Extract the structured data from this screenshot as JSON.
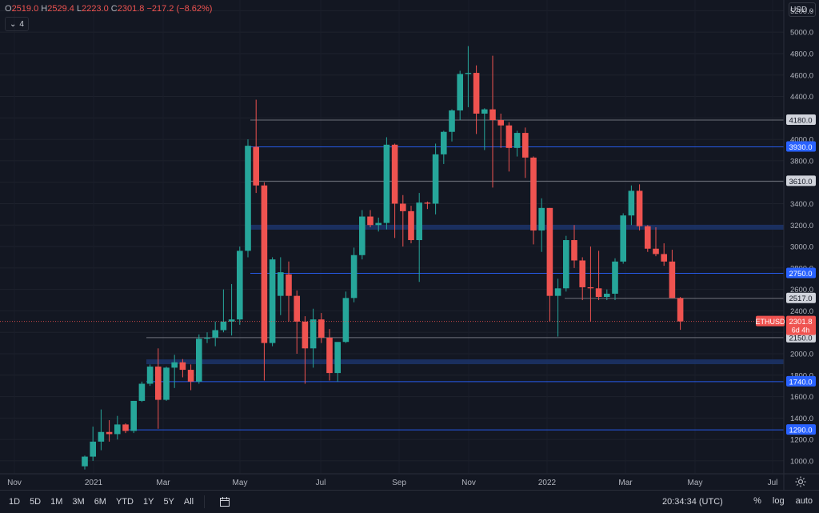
{
  "ohlc": {
    "o_label": "O",
    "o": "2519.0",
    "h_label": "H",
    "h": "2529.4",
    "l_label": "L",
    "l": "2223.0",
    "c_label": "C",
    "c": "2301.8",
    "change": "−217.2 (−8.62%)"
  },
  "indicator_count": "4",
  "currency": "USD",
  "colors": {
    "up": "#26a69a",
    "down": "#ef5350",
    "bg": "#131722",
    "grid": "#2a2e39",
    "blue_line": "#2962ff",
    "zone": "#1c3266"
  },
  "chart_data": {
    "type": "candlestick",
    "symbol": "ETHUSD",
    "last_price": "2301.8",
    "countdown": "6d 4h",
    "ylim": [
      880,
      5300
    ],
    "y_ticks": [
      "1000.0",
      "1200.0",
      "1400.0",
      "1600.0",
      "1800.0",
      "2000.0",
      "2200.0",
      "2400.0",
      "2600.0",
      "2800.0",
      "3000.0",
      "3200.0",
      "3400.0",
      "3600.0",
      "3800.0",
      "4000.0",
      "4200.0",
      "4400.0",
      "4600.0",
      "4800.0",
      "5000.0",
      "5200.0"
    ],
    "x_ticks": [
      "Nov",
      "2021",
      "Mar",
      "May",
      "Jul",
      "Sep",
      "Nov",
      "2022",
      "Mar",
      "May",
      "Jul"
    ],
    "candles": [
      {
        "o": 950,
        "h": 1050,
        "l": 920,
        "c": 1040
      },
      {
        "o": 1040,
        "h": 1320,
        "l": 1000,
        "c": 1180
      },
      {
        "o": 1180,
        "h": 1480,
        "l": 1100,
        "c": 1270
      },
      {
        "o": 1270,
        "h": 1380,
        "l": 1180,
        "c": 1250
      },
      {
        "o": 1250,
        "h": 1420,
        "l": 1200,
        "c": 1340
      },
      {
        "o": 1340,
        "h": 1350,
        "l": 1260,
        "c": 1280
      },
      {
        "o": 1280,
        "h": 1560,
        "l": 1260,
        "c": 1560
      },
      {
        "o": 1560,
        "h": 1740,
        "l": 1550,
        "c": 1720
      },
      {
        "o": 1720,
        "h": 1900,
        "l": 1700,
        "c": 1880
      },
      {
        "o": 1880,
        "h": 2050,
        "l": 1300,
        "c": 1570
      },
      {
        "o": 1570,
        "h": 1880,
        "l": 1560,
        "c": 1870
      },
      {
        "o": 1870,
        "h": 1990,
        "l": 1680,
        "c": 1920
      },
      {
        "o": 1920,
        "h": 1950,
        "l": 1780,
        "c": 1850
      },
      {
        "o": 1850,
        "h": 1900,
        "l": 1660,
        "c": 1740
      },
      {
        "o": 1740,
        "h": 2180,
        "l": 1720,
        "c": 2140
      },
      {
        "o": 2140,
        "h": 2200,
        "l": 2100,
        "c": 2150
      },
      {
        "o": 2150,
        "h": 2300,
        "l": 2070,
        "c": 2220
      },
      {
        "o": 2220,
        "h": 2600,
        "l": 2200,
        "c": 2300
      },
      {
        "o": 2300,
        "h": 2650,
        "l": 2170,
        "c": 2320
      },
      {
        "o": 2320,
        "h": 3000,
        "l": 2270,
        "c": 2960
      },
      {
        "o": 2960,
        "h": 4000,
        "l": 2900,
        "c": 3940
      },
      {
        "o": 3930,
        "h": 4370,
        "l": 3500,
        "c": 3570
      },
      {
        "o": 3570,
        "h": 3600,
        "l": 1750,
        "c": 2100
      },
      {
        "o": 2100,
        "h": 2900,
        "l": 2070,
        "c": 2880
      },
      {
        "o": 2540,
        "h": 2900,
        "l": 2360,
        "c": 2760
      },
      {
        "o": 2740,
        "h": 2860,
        "l": 2300,
        "c": 2540
      },
      {
        "o": 2540,
        "h": 2590,
        "l": 2000,
        "c": 2300
      },
      {
        "o": 2300,
        "h": 2350,
        "l": 1720,
        "c": 2050
      },
      {
        "o": 2050,
        "h": 2420,
        "l": 1870,
        "c": 2320
      },
      {
        "o": 2320,
        "h": 2380,
        "l": 2100,
        "c": 2150
      },
      {
        "o": 2150,
        "h": 2230,
        "l": 1750,
        "c": 1820
      },
      {
        "o": 1820,
        "h": 2100,
        "l": 1740,
        "c": 2110
      },
      {
        "o": 2110,
        "h": 2580,
        "l": 2100,
        "c": 2520
      },
      {
        "o": 2520,
        "h": 2990,
        "l": 2480,
        "c": 2920
      },
      {
        "o": 2920,
        "h": 3340,
        "l": 2880,
        "c": 3280
      },
      {
        "o": 3280,
        "h": 3340,
        "l": 3180,
        "c": 3200
      },
      {
        "o": 3200,
        "h": 3270,
        "l": 3140,
        "c": 3220
      },
      {
        "o": 3220,
        "h": 4020,
        "l": 3160,
        "c": 3950
      },
      {
        "o": 3950,
        "h": 3960,
        "l": 3080,
        "c": 3400
      },
      {
        "o": 3400,
        "h": 3480,
        "l": 3000,
        "c": 3330
      },
      {
        "o": 3330,
        "h": 3380,
        "l": 3030,
        "c": 3060
      },
      {
        "o": 3060,
        "h": 3500,
        "l": 2670,
        "c": 3410
      },
      {
        "o": 3410,
        "h": 3420,
        "l": 3350,
        "c": 3400
      },
      {
        "o": 3400,
        "h": 3960,
        "l": 3300,
        "c": 3860
      },
      {
        "o": 3860,
        "h": 4080,
        "l": 3770,
        "c": 4070
      },
      {
        "o": 4070,
        "h": 4280,
        "l": 3980,
        "c": 4270
      },
      {
        "o": 4270,
        "h": 4640,
        "l": 4180,
        "c": 4610
      },
      {
        "o": 4610,
        "h": 4870,
        "l": 4300,
        "c": 4620
      },
      {
        "o": 4620,
        "h": 4690,
        "l": 4050,
        "c": 4240
      },
      {
        "o": 4240,
        "h": 4290,
        "l": 3900,
        "c": 4280
      },
      {
        "o": 4280,
        "h": 4780,
        "l": 3550,
        "c": 4180
      },
      {
        "o": 4180,
        "h": 4240,
        "l": 3920,
        "c": 4130
      },
      {
        "o": 4130,
        "h": 4160,
        "l": 3700,
        "c": 3920
      },
      {
        "o": 3920,
        "h": 4080,
        "l": 3840,
        "c": 4060
      },
      {
        "o": 4060,
        "h": 4110,
        "l": 3640,
        "c": 3830
      },
      {
        "o": 3830,
        "h": 3840,
        "l": 3020,
        "c": 3150
      },
      {
        "o": 3150,
        "h": 3450,
        "l": 2950,
        "c": 3360
      },
      {
        "o": 3360,
        "h": 3360,
        "l": 2300,
        "c": 2540
      },
      {
        "o": 2540,
        "h": 2700,
        "l": 2160,
        "c": 2610
      },
      {
        "o": 2610,
        "h": 3100,
        "l": 2580,
        "c": 3060
      },
      {
        "o": 3060,
        "h": 3200,
        "l": 2800,
        "c": 2870
      },
      {
        "o": 2870,
        "h": 2900,
        "l": 2500,
        "c": 2620
      },
      {
        "o": 2620,
        "h": 3000,
        "l": 2300,
        "c": 2610
      },
      {
        "o": 2610,
        "h": 2960,
        "l": 2500,
        "c": 2530
      },
      {
        "o": 2530,
        "h": 2600,
        "l": 2500,
        "c": 2560
      },
      {
        "o": 2560,
        "h": 2890,
        "l": 2500,
        "c": 2860
      },
      {
        "o": 2860,
        "h": 3310,
        "l": 2840,
        "c": 3290
      },
      {
        "o": 3290,
        "h": 3570,
        "l": 3200,
        "c": 3520
      },
      {
        "o": 3520,
        "h": 3580,
        "l": 3150,
        "c": 3190
      },
      {
        "o": 3190,
        "h": 3200,
        "l": 2950,
        "c": 2980
      },
      {
        "o": 2980,
        "h": 3180,
        "l": 2910,
        "c": 2930
      },
      {
        "o": 2930,
        "h": 3030,
        "l": 2820,
        "c": 2860
      },
      {
        "o": 2860,
        "h": 2970,
        "l": 2520,
        "c": 2520
      },
      {
        "o": 2519,
        "h": 2529.4,
        "l": 2223,
        "c": 2301.8
      }
    ],
    "levels": [
      {
        "value": 4180,
        "label": "4180.0",
        "style": "gray"
      },
      {
        "value": 3930,
        "label": "3930.0",
        "style": "blue"
      },
      {
        "value": 3610,
        "label": "3610.0",
        "style": "gray"
      },
      {
        "value": 2750,
        "label": "2750.0",
        "style": "blue"
      },
      {
        "value": 2517,
        "label": "2517.0",
        "style": "gray"
      },
      {
        "value": 2150,
        "label": "2150.0",
        "style": "gray"
      },
      {
        "value": 1740,
        "label": "1740.0",
        "style": "blue"
      },
      {
        "value": 1290,
        "label": "1290.0",
        "style": "blue"
      }
    ],
    "zones": [
      {
        "value": 3180
      },
      {
        "value": 1925
      }
    ]
  },
  "timeframes": [
    "1D",
    "5D",
    "1M",
    "3M",
    "6M",
    "YTD",
    "1Y",
    "5Y",
    "All"
  ],
  "clock": "20:34:34 (UTC)",
  "scale_options": {
    "percent": "%",
    "log": "log",
    "auto": "auto"
  }
}
